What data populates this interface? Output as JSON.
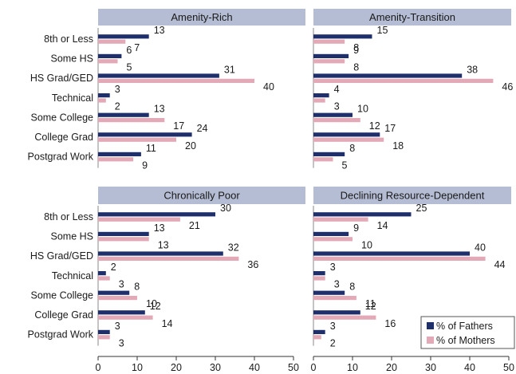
{
  "chart_data": {
    "type": "bar",
    "orientation": "horizontal",
    "categories": [
      "8th or Less",
      "Some HS",
      "HS Grad/GED",
      "Technical",
      "Some College",
      "College Grad",
      "Postgrad Work"
    ],
    "xlim": [
      0,
      50
    ],
    "xticks": [
      "0",
      "10",
      "20",
      "30",
      "40",
      "50"
    ],
    "legend": {
      "placement": "bottom-right",
      "entries": [
        "% of Fathers",
        "% of Mothers"
      ]
    },
    "colors": {
      "fathers": "#1f2f6b",
      "mothers": "#e3a9b6",
      "title_bar": "#b4bdd3"
    },
    "panels": [
      {
        "title": "Amenity-Rich",
        "series": [
          {
            "name": "% of Fathers",
            "values": [
              13,
              6,
              31,
              3,
              13,
              24,
              11
            ]
          },
          {
            "name": "% of Mothers",
            "values": [
              7,
              5,
              40,
              2,
              17,
              20,
              9
            ]
          }
        ]
      },
      {
        "title": "Amenity-Transition",
        "series": [
          {
            "name": "% of Fathers",
            "values": [
              15,
              9,
              38,
              4,
              10,
              17,
              8
            ]
          },
          {
            "name": "% of Mothers",
            "values": [
              8,
              8,
              46,
              3,
              12,
              18,
              5
            ]
          }
        ]
      },
      {
        "title": "Chronically Poor",
        "series": [
          {
            "name": "% of Fathers",
            "values": [
              30,
              13,
              32,
              2,
              8,
              12,
              3
            ]
          },
          {
            "name": "% of Mothers",
            "values": [
              21,
              13,
              36,
              3,
              10,
              14,
              3
            ]
          }
        ]
      },
      {
        "title": "Declining Resource-Dependent",
        "series": [
          {
            "name": "% of Fathers",
            "values": [
              25,
              9,
              40,
              3,
              8,
              12,
              3
            ]
          },
          {
            "name": "% of Mothers",
            "values": [
              14,
              10,
              44,
              3,
              11,
              16,
              2
            ]
          }
        ]
      }
    ]
  }
}
